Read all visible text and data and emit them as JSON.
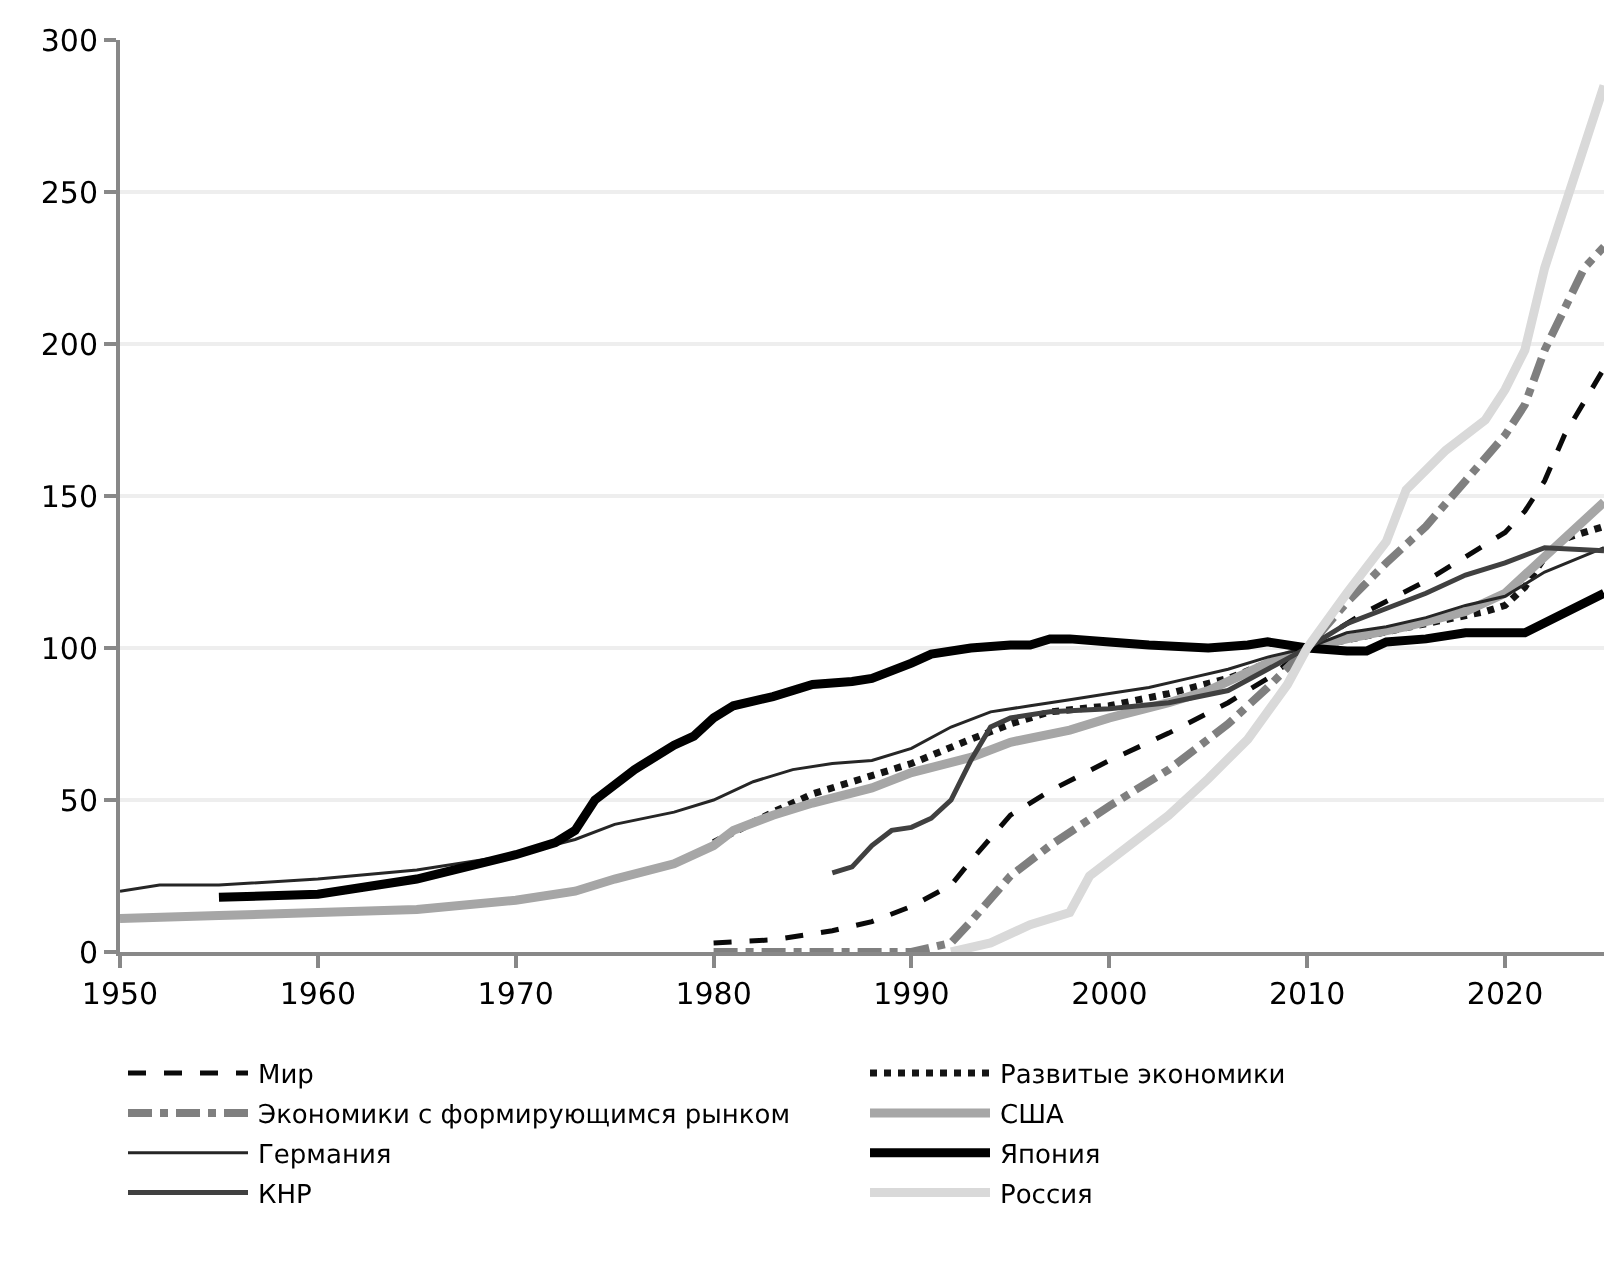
{
  "chart_data": {
    "type": "line",
    "xlim": [
      1950,
      2025
    ],
    "xticks": [
      1950,
      1960,
      1970,
      1980,
      1990,
      2000,
      2010,
      2020
    ],
    "ylim": [
      0,
      300
    ],
    "yticks": [
      0,
      50,
      100,
      150,
      200,
      250,
      300
    ],
    "grid": "y",
    "legend": "bottom",
    "marker": "none",
    "series": [
      {
        "name": "Мир",
        "color": "#0a0a0a",
        "line_style": "dashed",
        "x": [
          1980,
          1983,
          1986,
          1988,
          1990,
          1992,
          1993,
          1995,
          1997,
          2000,
          2003,
          2006,
          2008,
          2010,
          2013,
          2016,
          2018,
          2020,
          2021,
          2022,
          2023,
          2025
        ],
        "values": [
          3,
          4,
          7,
          10,
          15,
          22,
          30,
          45,
          53,
          63,
          72,
          82,
          90,
          100,
          112,
          122,
          130,
          138,
          145,
          155,
          170,
          192
        ]
      },
      {
        "name": "Развитые экономики",
        "color": "#141414",
        "line_style": "dotted",
        "x": [
          1980,
          1983,
          1985,
          1988,
          1990,
          1993,
          1995,
          1997,
          2000,
          2003,
          2006,
          2010,
          2013,
          2016,
          2019,
          2020,
          2021,
          2022,
          2023,
          2025
        ],
        "values": [
          36,
          46,
          52,
          58,
          62,
          70,
          75,
          79,
          81,
          85,
          90,
          100,
          104,
          108,
          112,
          114,
          120,
          130,
          136,
          140
        ]
      },
      {
        "name": "Экономики с формирующимся рынком",
        "color": "#7f7f7f",
        "line_style": "dashdot",
        "x": [
          1980,
          1990,
          1992,
          1993,
          1995,
          1997,
          2000,
          2003,
          2006,
          2008,
          2010,
          2012,
          2014,
          2016,
          2018,
          2020,
          2021,
          2022,
          2024,
          2025
        ],
        "values": [
          0,
          0,
          3,
          10,
          25,
          35,
          48,
          60,
          75,
          87,
          100,
          115,
          128,
          140,
          155,
          170,
          180,
          198,
          225,
          232
        ]
      },
      {
        "name": "США",
        "color": "#a6a6a6",
        "line_style": "solid",
        "x": [
          1950,
          1955,
          1960,
          1965,
          1970,
          1973,
          1975,
          1978,
          1980,
          1981,
          1983,
          1985,
          1988,
          1990,
          1993,
          1995,
          1998,
          2000,
          2003,
          2005,
          2008,
          2010,
          2012,
          2015,
          2018,
          2020,
          2022,
          2025
        ],
        "values": [
          11,
          12,
          13,
          14,
          17,
          20,
          24,
          29,
          35,
          40,
          45,
          49,
          54,
          59,
          64,
          69,
          73,
          77,
          82,
          86,
          95,
          100,
          103,
          107,
          112,
          118,
          130,
          148
        ]
      },
      {
        "name": "Германия",
        "color": "#262626",
        "line_style": "solid",
        "x": [
          1950,
          1952,
          1955,
          1960,
          1965,
          1970,
          1973,
          1975,
          1978,
          1980,
          1982,
          1984,
          1986,
          1988,
          1990,
          1992,
          1994,
          1996,
          1998,
          2000,
          2002,
          2004,
          2006,
          2008,
          2010,
          2012,
          2014,
          2016,
          2018,
          2020,
          2022,
          2025
        ],
        "values": [
          20,
          22,
          22,
          24,
          27,
          32,
          37,
          42,
          46,
          50,
          56,
          60,
          62,
          63,
          67,
          74,
          79,
          81,
          83,
          85,
          87,
          90,
          93,
          97,
          100,
          105,
          107,
          110,
          114,
          117,
          125,
          133
        ]
      },
      {
        "name": "Япония",
        "color": "#000000",
        "line_style": "solid",
        "x": [
          1955,
          1960,
          1965,
          1970,
          1972,
          1973,
          1974,
          1976,
          1978,
          1979,
          1980,
          1981,
          1983,
          1985,
          1987,
          1988,
          1990,
          1991,
          1993,
          1995,
          1996,
          1997,
          1998,
          2000,
          2002,
          2005,
          2007,
          2008,
          2010,
          2012,
          2013,
          2014,
          2016,
          2018,
          2021,
          2025
        ],
        "values": [
          18,
          19,
          24,
          32,
          36,
          40,
          50,
          60,
          68,
          71,
          77,
          81,
          84,
          88,
          89,
          90,
          95,
          98,
          100,
          101,
          101,
          103,
          103,
          102,
          101,
          100,
          101,
          102,
          100,
          99,
          99,
          102,
          103,
          105,
          105,
          118
        ]
      },
      {
        "name": "КНР",
        "color": "#404040",
        "line_style": "solid",
        "x": [
          1986,
          1987,
          1988,
          1989,
          1990,
          1991,
          1992,
          1993,
          1994,
          1995,
          1997,
          2000,
          2003,
          2006,
          2008,
          2010,
          2012,
          2014,
          2016,
          2018,
          2020,
          2022,
          2025
        ],
        "values": [
          26,
          28,
          35,
          40,
          41,
          44,
          50,
          63,
          74,
          77,
          79,
          80,
          82,
          86,
          93,
          100,
          108,
          113,
          118,
          124,
          128,
          133,
          132
        ]
      },
      {
        "name": "Россия",
        "color": "#d9d9d9",
        "line_style": "solid",
        "x": [
          1992,
          1994,
          1996,
          1998,
          1999,
          2001,
          2003,
          2005,
          2007,
          2009,
          2010,
          2012,
          2014,
          2015,
          2017,
          2019,
          2020,
          2021,
          2022,
          2023,
          2025
        ],
        "values": [
          0,
          3,
          9,
          13,
          25,
          35,
          45,
          57,
          70,
          88,
          100,
          118,
          135,
          152,
          165,
          175,
          185,
          198,
          225,
          245,
          285
        ]
      }
    ]
  }
}
